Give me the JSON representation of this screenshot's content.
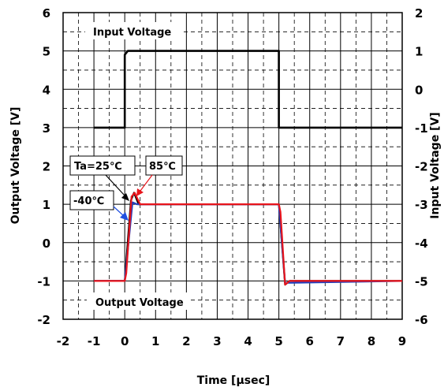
{
  "chart_data": {
    "type": "line",
    "xlabel": "Time [μsec]",
    "ylabel_left": "Output Voltage [V]",
    "ylabel_right": "Input Voltage [V]",
    "xlim": [
      -2,
      9
    ],
    "ylim_left": [
      -2,
      6
    ],
    "ylim_right": [
      -6,
      2
    ],
    "x_ticks": [
      "-2",
      "-1",
      "0",
      "1",
      "2",
      "3",
      "4",
      "5",
      "6",
      "7",
      "8",
      "9"
    ],
    "y_left_ticks": [
      "-2",
      "-1",
      "0",
      "1",
      "2",
      "3",
      "4",
      "5",
      "6"
    ],
    "y_right_ticks": [
      "-6",
      "-5",
      "-4",
      "-3",
      "-2",
      "-1",
      "0",
      "1",
      "2"
    ],
    "grid": true,
    "annotations": {
      "input": "Input Voltage",
      "output": "Output Voltage",
      "ta25": "Ta=25℃",
      "t85": "85℃",
      "tm40": "-40℃"
    },
    "series": [
      {
        "axis": "right",
        "color": "#000000",
        "x": [
          -1,
          0,
          0,
          0.1,
          5,
          5,
          9
        ],
        "y": [
          -1,
          -1,
          0.9,
          1,
          1,
          -1,
          -1
        ]
      },
      {
        "axis": "left",
        "color": "#000000",
        "x": [
          -1,
          0,
          0.2,
          0.3,
          0.45,
          5,
          5.2,
          5.35,
          9
        ],
        "y": [
          -1,
          -1,
          1.1,
          1.3,
          1,
          1,
          -1.1,
          -1,
          -1
        ]
      },
      {
        "axis": "left",
        "color": "#1f3fbf",
        "x": [
          -1,
          0,
          0.25,
          0.4,
          5,
          5.2,
          9
        ],
        "y": [
          -1,
          -1,
          1.05,
          1,
          1,
          -1.05,
          -1
        ]
      },
      {
        "axis": "left",
        "color": "#e8141b",
        "x": [
          -1,
          0,
          0.05,
          0.22,
          0.32,
          0.5,
          5,
          5.05,
          5.2,
          5.35,
          9
        ],
        "y": [
          -1,
          -1,
          -0.8,
          1.2,
          1.3,
          1,
          1,
          0.8,
          -1.1,
          -1,
          -1
        ]
      }
    ]
  },
  "colors": {
    "arrow_black": "#000000",
    "arrow_red": "#e8141b",
    "arrow_blue": "#1f4fe0"
  }
}
